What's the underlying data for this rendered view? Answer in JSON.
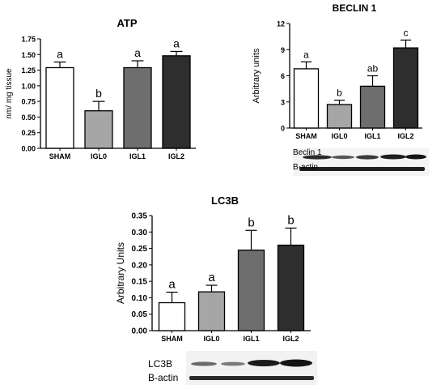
{
  "chart_data": [
    {
      "id": "atp",
      "type": "bar",
      "title": "ATP",
      "ylabel": "nm/ mg tissue",
      "categories": [
        "SHAM",
        "IGL0",
        "IGL1",
        "IGL2"
      ],
      "values": [
        1.29,
        0.6,
        1.29,
        1.48
      ],
      "errors": [
        0.09,
        0.15,
        0.11,
        0.07
      ],
      "letters": [
        "a",
        "b",
        "a",
        "a"
      ],
      "ylim": [
        0,
        1.75
      ],
      "yticks": [
        "0.00",
        "0.25",
        "0.50",
        "0.75",
        "1.00",
        "1.25",
        "1.50",
        "1.75"
      ],
      "bar_colors": [
        "#ffffff",
        "#a6a6a6",
        "#6e6e6e",
        "#2e2e2e"
      ]
    },
    {
      "id": "beclin",
      "type": "bar",
      "title": "BECLIN 1",
      "ylabel": "Arbitrary units",
      "categories": [
        "SHAM",
        "IGL0",
        "IGL1",
        "IGL2"
      ],
      "values": [
        6.8,
        2.7,
        4.8,
        9.2
      ],
      "errors": [
        0.8,
        0.5,
        1.2,
        0.9
      ],
      "letters": [
        "a",
        "b",
        "ab",
        "c"
      ],
      "ylim": [
        0,
        12
      ],
      "yticks": [
        "0",
        "3",
        "6",
        "9",
        "12"
      ],
      "bar_colors": [
        "#ffffff",
        "#a6a6a6",
        "#6e6e6e",
        "#2e2e2e"
      ]
    },
    {
      "id": "lc3b",
      "type": "bar",
      "title": "LC3B",
      "ylabel": "Arbitrary Units",
      "categories": [
        "SHAM",
        "IGL0",
        "IGL1",
        "IGL2"
      ],
      "values": [
        0.085,
        0.118,
        0.245,
        0.26
      ],
      "errors": [
        0.032,
        0.02,
        0.06,
        0.052
      ],
      "letters": [
        "a",
        "a",
        "b",
        "b"
      ],
      "ylim": [
        0,
        0.35
      ],
      "yticks": [
        "0.00",
        "0.05",
        "0.10",
        "0.15",
        "0.20",
        "0.25",
        "0.30",
        "0.35"
      ],
      "bar_colors": [
        "#ffffff",
        "#a6a6a6",
        "#6e6e6e",
        "#2e2e2e"
      ]
    }
  ],
  "blots": {
    "beclin": {
      "label_top": "Beclin 1",
      "label_bottom": "B-actin"
    },
    "lc3b": {
      "label_top": "LC3B",
      "label_bottom": "B-actin"
    }
  }
}
